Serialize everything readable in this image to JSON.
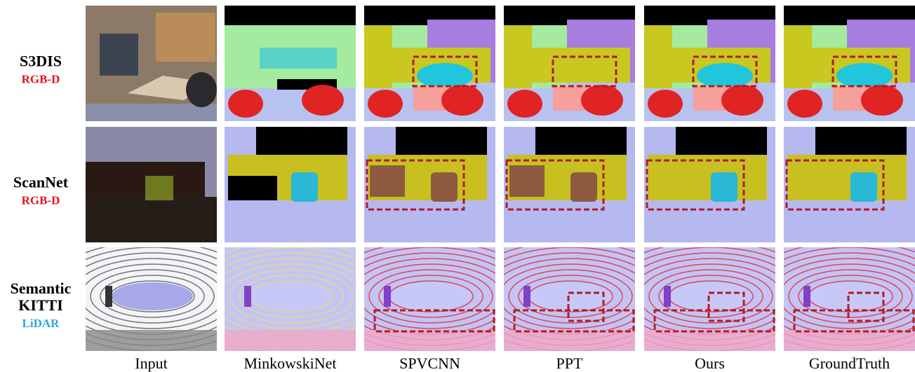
{
  "rows": [
    {
      "name": [
        "S3DIS"
      ],
      "modality": "RGB-D"
    },
    {
      "name": [
        "ScanNet"
      ],
      "modality": "RGB-D"
    },
    {
      "name": [
        "Semantic",
        "KITTI"
      ],
      "modality": "LiDAR"
    }
  ],
  "columns": [
    "Input",
    "MinkowskiNet",
    "SPVCNN",
    "PPT",
    "Ours",
    "GroundTruth"
  ]
}
